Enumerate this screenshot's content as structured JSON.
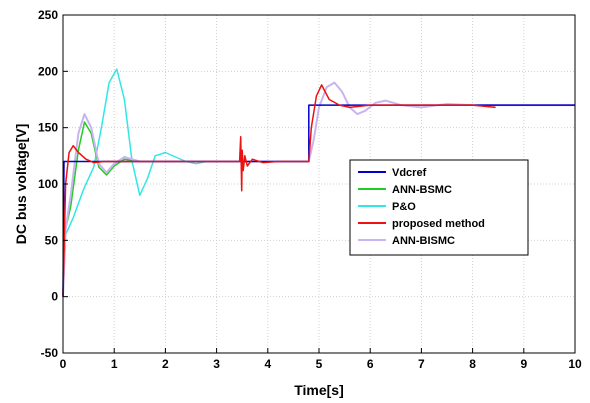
{
  "chart_data": {
    "type": "line",
    "xlabel": "Time[s]",
    "ylabel": "DC bus voltage[V]",
    "xlim": [
      0,
      10
    ],
    "ylim": [
      -50,
      250
    ],
    "xticks": [
      "0",
      "1",
      "2",
      "3",
      "4",
      "5",
      "6",
      "7",
      "8",
      "9",
      "10"
    ],
    "yticks": [
      "-50",
      "0",
      "50",
      "100",
      "150",
      "200",
      "250"
    ],
    "grid": true,
    "legend_position": "center-right",
    "series": [
      {
        "name": "Vdcref",
        "color": "#0000cc",
        "x": [
          0,
          0.02,
          4.8,
          4.8,
          10
        ],
        "y": [
          0,
          120,
          120,
          170,
          170
        ]
      },
      {
        "name": "ANN-BSMC",
        "color": "#22cc22",
        "x": [
          0,
          0.05,
          0.15,
          0.3,
          0.42,
          0.55,
          0.7,
          0.85,
          1.0,
          1.2,
          1.5,
          2.0,
          3.0,
          4.8
        ],
        "y": [
          0,
          60,
          80,
          130,
          155,
          145,
          115,
          108,
          116,
          122,
          120,
          120,
          120,
          120
        ]
      },
      {
        "name": "P&O",
        "color": "#33e6e6",
        "x": [
          0,
          0.05,
          0.2,
          0.4,
          0.6,
          0.75,
          0.9,
          1.05,
          1.2,
          1.35,
          1.5,
          1.65,
          1.8,
          2.0,
          2.2,
          2.4,
          2.6,
          2.8,
          3.0,
          4.8
        ],
        "y": [
          0,
          55,
          70,
          95,
          115,
          150,
          190,
          202,
          175,
          120,
          90,
          105,
          125,
          128,
          124,
          120,
          118,
          120,
          120,
          120
        ]
      },
      {
        "name": "proposed method",
        "color": "#ee1111",
        "x": [
          0,
          0.05,
          0.12,
          0.2,
          0.3,
          0.45,
          0.6,
          0.8,
          1.0,
          1.5,
          2.0,
          3.0,
          3.45,
          3.47,
          3.49,
          3.5,
          3.52,
          3.55,
          3.6,
          3.7,
          3.9,
          4.2,
          4.8,
          4.85,
          4.95,
          5.05,
          5.2,
          5.4,
          5.6,
          6.0,
          7.0,
          8.0,
          8.45
        ],
        "y": [
          0,
          100,
          128,
          134,
          128,
          122,
          119,
          120,
          120,
          120,
          120,
          120,
          120,
          142,
          94,
          130,
          112,
          125,
          116,
          122,
          119,
          120,
          120,
          150,
          178,
          188,
          175,
          170,
          168,
          170,
          170,
          170,
          168
        ]
      },
      {
        "name": "ANN-BISMC",
        "color": "#c8b4f0",
        "x": [
          0,
          0.05,
          0.15,
          0.3,
          0.42,
          0.55,
          0.7,
          0.85,
          1.0,
          1.2,
          1.5,
          2.0,
          3.0,
          4.8,
          4.9,
          5.0,
          5.15,
          5.3,
          5.45,
          5.6,
          5.75,
          5.9,
          6.1,
          6.3,
          6.6,
          7.0,
          7.5,
          8.0,
          9.0,
          10.0
        ],
        "y": [
          0,
          60,
          90,
          145,
          162,
          150,
          118,
          110,
          118,
          124,
          120,
          120,
          120,
          120,
          140,
          168,
          186,
          190,
          182,
          168,
          162,
          165,
          172,
          174,
          170,
          168,
          171,
          170,
          170,
          170
        ]
      }
    ]
  }
}
